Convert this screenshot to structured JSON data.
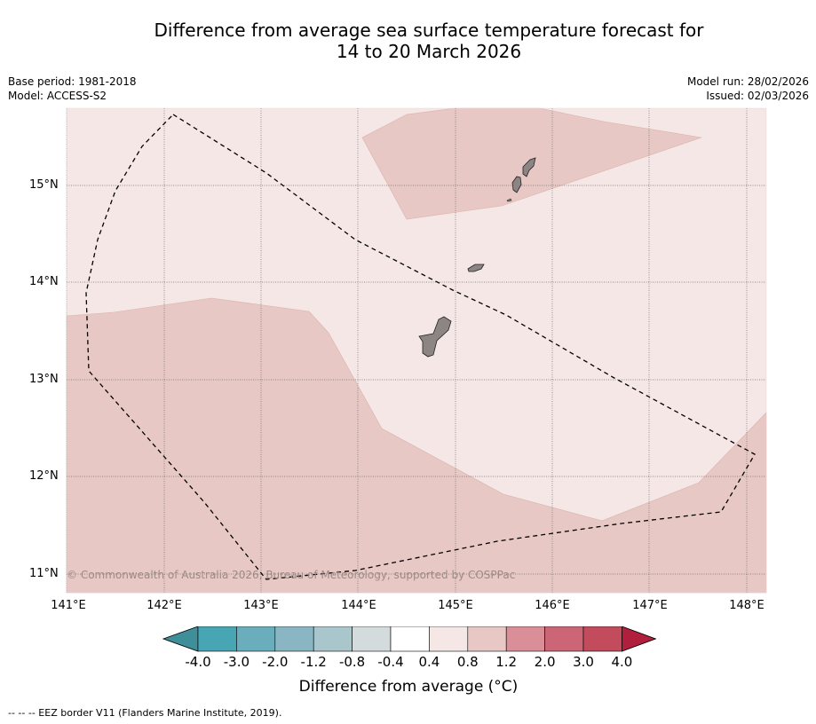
{
  "title": {
    "line1": "Difference from average sea surface temperature forecast for",
    "line2": "14 to 20 March 2026"
  },
  "meta_left": {
    "base_period": "Base period: 1981-2018",
    "model": "Model: ACCESS-S2"
  },
  "meta_right": {
    "model_run": "Model run: 28/02/2026",
    "issued": "Issued: 02/03/2026"
  },
  "map": {
    "lon_labels": [
      "141°E",
      "142°E",
      "143°E",
      "144°E",
      "145°E",
      "146°E",
      "147°E",
      "148°E"
    ],
    "lat_labels": [
      "15°N",
      "14°N",
      "13°N",
      "12°N",
      "11°N"
    ],
    "copyright": "© Commonwealth of Australia 2026, Bureau of Meteorology, supported by COSPPac",
    "colors": {
      "anomaly_0_4_to_0_8": "#f4e7e6",
      "anomaly_0_8_to_1_2": "#e8c8c4",
      "land": "#8c8584",
      "eez_border": "#000000",
      "gridline": "#6e6e6e"
    },
    "regions": [
      "warm-anomaly-region-north",
      "warm-anomaly-region-south",
      "eez-border",
      "guam-island",
      "rota-island",
      "tinian-island",
      "saipan-island"
    ]
  },
  "colorbar": {
    "colors": [
      "#3f8f9a",
      "#48a5b4",
      "#6aaebd",
      "#89b6c2",
      "#a8c6cb",
      "#d3dbdd",
      "#ffffff",
      "#f4e7e6",
      "#e8c8c4",
      "#d98e98",
      "#cc6677",
      "#c24b5c",
      "#b01f3c"
    ],
    "tick_labels": [
      "-4.0",
      "-3.0",
      "-2.0",
      "-1.2",
      "-0.8",
      "-0.4",
      "0.4",
      "0.8",
      "1.2",
      "2.0",
      "3.0",
      "4.0"
    ],
    "label": "Difference from average (°C)"
  },
  "footer": {
    "legend": "--  --  -- EEZ border V11 (Flanders Marine Institute, 2019)."
  }
}
